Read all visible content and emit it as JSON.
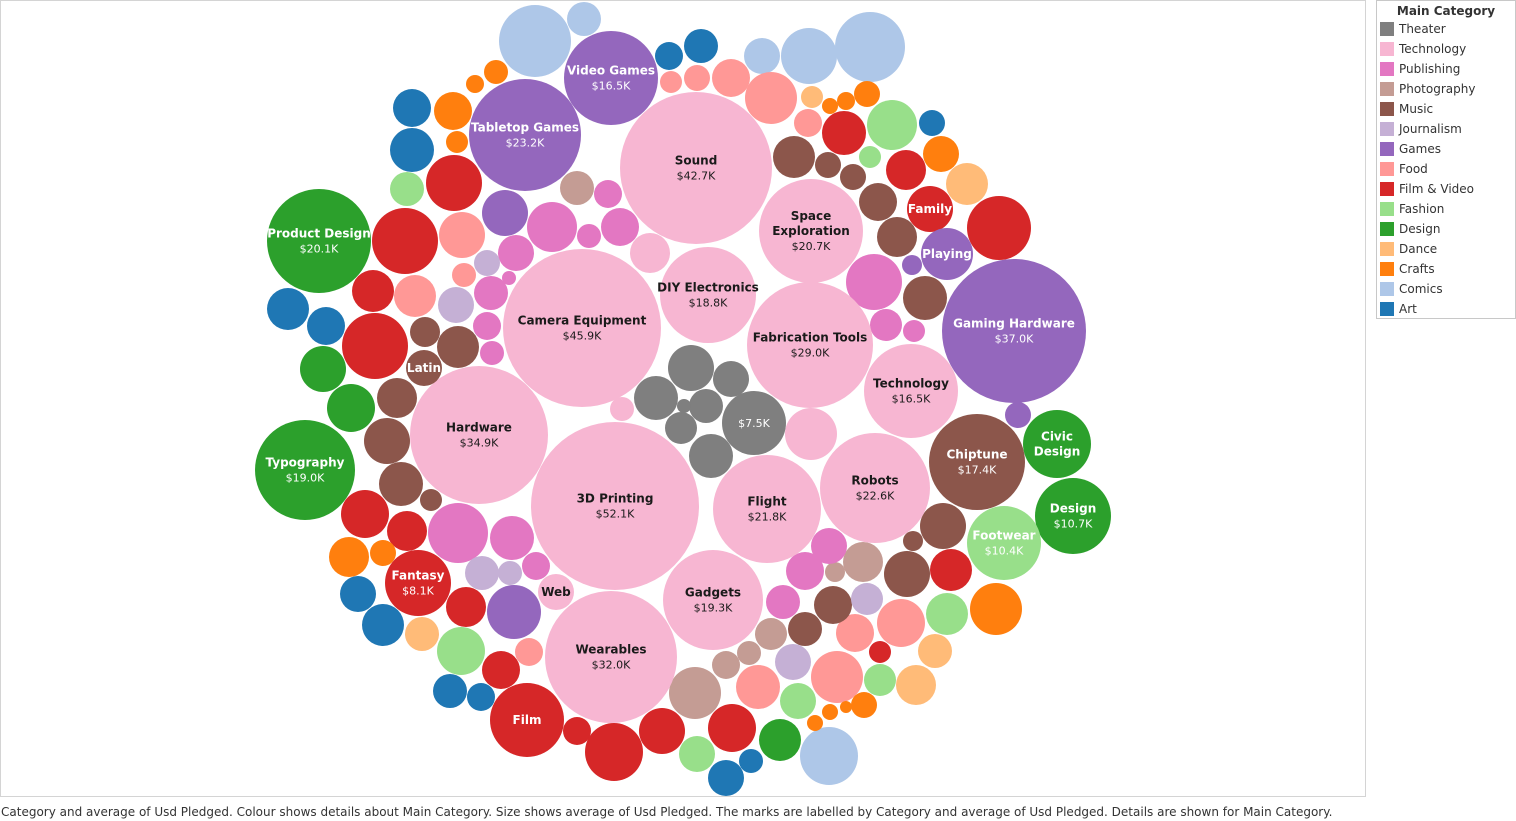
{
  "caption": "Category and average of Usd Pledged.  Colour shows details about Main Category.  Size shows average of Usd Pledged.  The marks are labelled by Category and average of Usd Pledged.  Details are shown for Main Category.",
  "legend": {
    "title": "Main Category",
    "items": [
      {
        "label": "Theater",
        "color": "#7f7f7f"
      },
      {
        "label": "Technology",
        "color": "#f7b6d2"
      },
      {
        "label": "Publishing",
        "color": "#e377c2"
      },
      {
        "label": "Photography",
        "color": "#c49c94"
      },
      {
        "label": "Music",
        "color": "#8c564b"
      },
      {
        "label": "Journalism",
        "color": "#c5b0d5"
      },
      {
        "label": "Games",
        "color": "#9467bd"
      },
      {
        "label": "Food",
        "color": "#ff9896"
      },
      {
        "label": "Film & Video",
        "color": "#d62728"
      },
      {
        "label": "Fashion",
        "color": "#98df8a"
      },
      {
        "label": "Design",
        "color": "#2ca02c"
      },
      {
        "label": "Dance",
        "color": "#ffbb78"
      },
      {
        "label": "Crafts",
        "color": "#ff7f0e"
      },
      {
        "label": "Comics",
        "color": "#aec7e8"
      },
      {
        "label": "Art",
        "color": "#1f77b4"
      }
    ]
  },
  "chart_data": {
    "type": "packed-bubble",
    "size_measure": "Avg Usd Pledged",
    "color_field": "Main Category",
    "labeled_bubbles": [
      {
        "category": "3D Printing",
        "main": "Technology",
        "value_label": "$52.1K"
      },
      {
        "category": "Camera Equipment",
        "main": "Technology",
        "value_label": "$45.9K"
      },
      {
        "category": "Sound",
        "main": "Technology",
        "value_label": "$42.7K"
      },
      {
        "category": "Gaming Hardware",
        "main": "Games",
        "value_label": "$37.0K"
      },
      {
        "category": "Hardware",
        "main": "Technology",
        "value_label": "$34.9K"
      },
      {
        "category": "Wearables",
        "main": "Technology",
        "value_label": "$32.0K"
      },
      {
        "category": "Fabrication Tools",
        "main": "Technology",
        "value_label": "$29.0K"
      },
      {
        "category": "Tabletop Games",
        "main": "Games",
        "value_label": "$23.2K"
      },
      {
        "category": "Robots",
        "main": "Technology",
        "value_label": "$22.6K"
      },
      {
        "category": "Flight",
        "main": "Technology",
        "value_label": "$21.8K"
      },
      {
        "category": "Space Exploration",
        "main": "Technology",
        "value_label": "$20.7K"
      },
      {
        "category": "Product Design",
        "main": "Design",
        "value_label": "$20.1K"
      },
      {
        "category": "Gadgets",
        "main": "Technology",
        "value_label": "$19.3K"
      },
      {
        "category": "Typography",
        "main": "Design",
        "value_label": "$19.0K"
      },
      {
        "category": "DIY Electronics",
        "main": "Technology",
        "value_label": "$18.8K"
      },
      {
        "category": "Chiptune",
        "main": "Music",
        "value_label": "$17.4K"
      },
      {
        "category": "Video Games",
        "main": "Games",
        "value_label": "$16.5K"
      },
      {
        "category": "Technology",
        "main": "Technology",
        "value_label": "$16.5K"
      },
      {
        "category": "Design",
        "main": "Design",
        "value_label": "$10.7K"
      },
      {
        "category": "Footwear",
        "main": "Fashion",
        "value_label": "$10.4K"
      },
      {
        "category": "Fantasy",
        "main": "Film & Video",
        "value_label": "$8.1K"
      },
      {
        "category": "",
        "main": "Theater",
        "value_label": "$7.5K"
      },
      {
        "category": "Civic Design",
        "main": "Design",
        "value_label": ""
      },
      {
        "category": "Family",
        "main": "Film & Video",
        "value_label": ""
      },
      {
        "category": "Playing",
        "main": "Games",
        "value_label": ""
      },
      {
        "category": "Latin",
        "main": "Music",
        "value_label": ""
      },
      {
        "category": "Web",
        "main": "Technology",
        "value_label": ""
      },
      {
        "category": "Film",
        "main": "Film & Video",
        "value_label": ""
      }
    ],
    "unlabeled_bubbles_by_main_category": {
      "Theater": 9,
      "Technology": 3,
      "Publishing": 15,
      "Photography": 7,
      "Music": 22,
      "Journalism": 7,
      "Games": 3,
      "Food": 16,
      "Film & Video": 23,
      "Fashion": 11,
      "Design": 5,
      "Dance": 6,
      "Crafts": 13,
      "Comics": 9,
      "Art": 13
    }
  }
}
